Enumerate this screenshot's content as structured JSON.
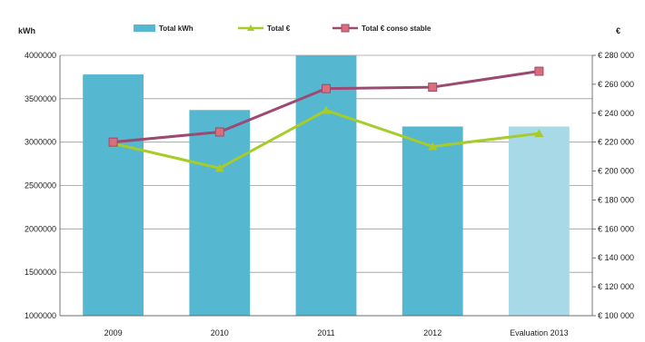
{
  "chart_data": {
    "type": "bar",
    "categories": [
      "2009",
      "2010",
      "2011",
      "2012",
      "Evaluation 2013"
    ],
    "left_axis": {
      "unit": "kWh",
      "ylim": [
        1000000,
        4000000
      ],
      "ticks": [
        1000000,
        1500000,
        2000000,
        2500000,
        3000000,
        3500000,
        4000000
      ],
      "tick_labels": [
        "1000000",
        "1500000",
        "2000000",
        "2500000",
        "3000000",
        "3500000",
        "4000000"
      ]
    },
    "right_axis": {
      "unit": "€",
      "ylim": [
        100000,
        280000
      ],
      "ticks": [
        100000,
        120000,
        140000,
        160000,
        180000,
        200000,
        220000,
        240000,
        260000,
        280000
      ],
      "tick_labels": [
        "€ 100 000",
        "€ 120 000",
        "€ 140 000",
        "€ 160 000",
        "€ 180 000",
        "€ 200 000",
        "€ 220 000",
        "€ 240 000",
        "€ 260 000",
        "€ 280 000"
      ]
    },
    "series": [
      {
        "name": "Total kWh",
        "type": "bar",
        "axis": "left",
        "values": [
          3780000,
          3370000,
          4000000,
          3180000,
          3180000
        ],
        "colors": [
          "#56b7d1",
          "#56b7d1",
          "#56b7d1",
          "#56b7d1",
          "#a8d9e7"
        ]
      },
      {
        "name": "Total €",
        "type": "line",
        "axis": "right",
        "marker": "triangle",
        "color": "#a6cc2a",
        "values": [
          219000,
          202000,
          242000,
          217000,
          226000
        ]
      },
      {
        "name": "Total € conso stable",
        "type": "line",
        "axis": "right",
        "marker": "square",
        "color": "#9c4a72",
        "values": [
          220000,
          227000,
          257000,
          258000,
          269000
        ]
      }
    ],
    "grid": "horizontal",
    "legend_position": "top"
  }
}
